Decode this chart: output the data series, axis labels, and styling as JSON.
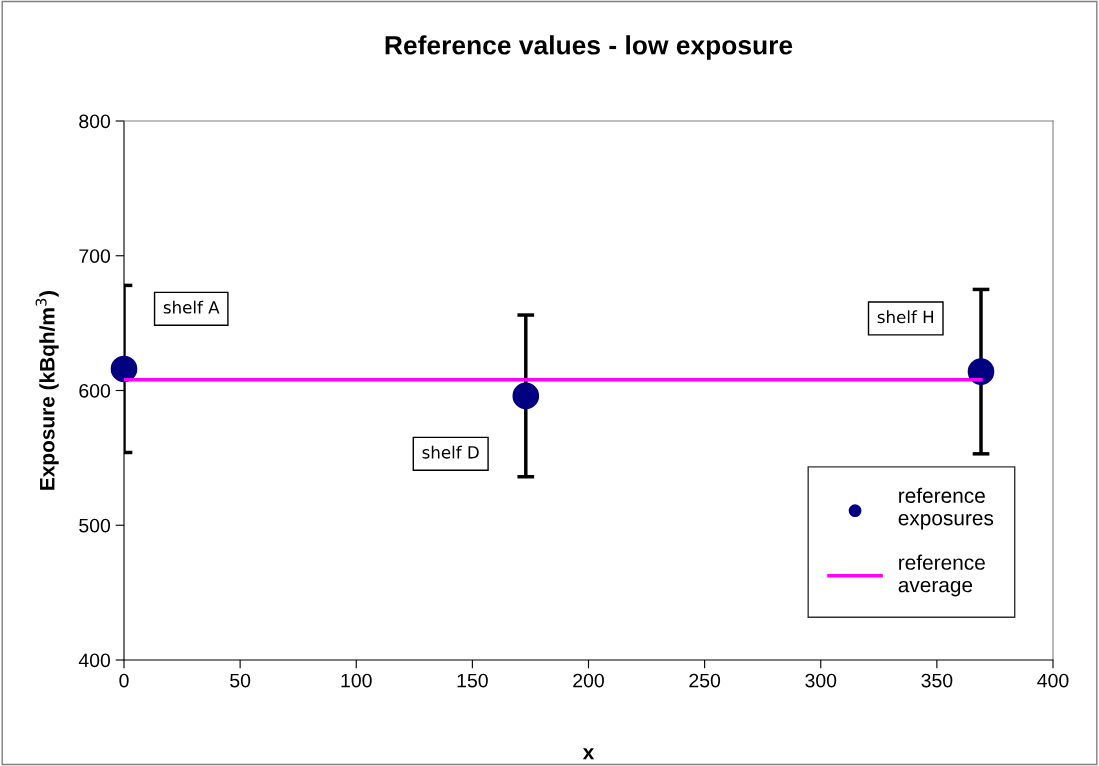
{
  "chart_data": {
    "type": "scatter",
    "title": "Reference values - low exposure",
    "xlabel": "x",
    "ylabel": "Exposure (kBqh/m$^{3}$)",
    "xlim": [
      0,
      400
    ],
    "xticks": [
      0,
      50,
      100,
      150,
      200,
      250,
      300,
      350,
      400
    ],
    "ylim": [
      400,
      800
    ],
    "yticks": [
      400,
      500,
      600,
      700,
      800
    ],
    "series": [
      {
        "name": "reference exposures",
        "color": "#000080",
        "x": [
          0,
          173,
          369
        ],
        "values": [
          616,
          596,
          614
        ],
        "errors": [
          62,
          60,
          61
        ],
        "marker": "circle"
      },
      {
        "name": "reference average",
        "type": "line",
        "color": "#ff00ff",
        "x": [
          0,
          369
        ],
        "values": [
          608,
          608
        ],
        "marker": "none",
        "line_style": "solid"
      }
    ],
    "annotations": [
      "shelf A",
      "shelf D",
      "shelf H"
    ],
    "legend": "bottom right",
    "grid": false
  }
}
